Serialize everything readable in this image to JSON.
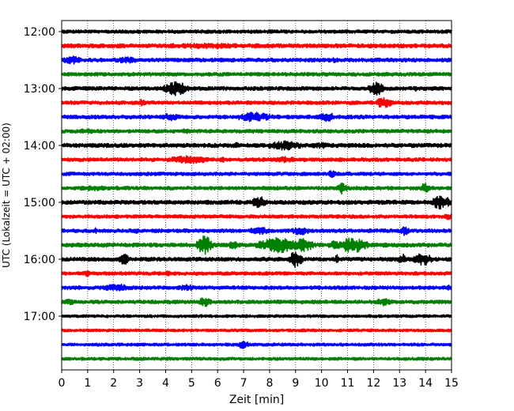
{
  "chart_data": {
    "type": "line",
    "title": "",
    "xlabel": "Zeit  [min]",
    "ylabel": "UTC (Lokalzeit = UTC + 02:00)",
    "xlim": [
      0,
      15
    ],
    "x_ticks": [
      "0",
      "1",
      "2",
      "3",
      "4",
      "5",
      "6",
      "7",
      "8",
      "9",
      "10",
      "11",
      "12",
      "13",
      "14",
      "15"
    ],
    "grid": "vertical dotted",
    "legend": "none",
    "row_interval_minutes": 15,
    "time_labels": [
      "12:00",
      "13:00",
      "14:00",
      "15:00",
      "16:00",
      "17:00"
    ],
    "color_cycle": [
      "#000000",
      "#ff0000",
      "#0000ff",
      "#008000"
    ],
    "traces": [
      {
        "start": "12:00",
        "color": "#000000",
        "amp": 2.2,
        "events": []
      },
      {
        "start": "12:15",
        "color": "#ff0000",
        "amp": 2.6,
        "events": [
          {
            "x": 5.5,
            "w": 3.0,
            "a": 3.5
          }
        ]
      },
      {
        "start": "12:30",
        "color": "#0000ff",
        "amp": 2.4,
        "events": [
          {
            "x": 0.4,
            "w": 0.4,
            "a": 5.5
          },
          {
            "x": 2.5,
            "w": 0.6,
            "a": 4.0
          },
          {
            "x": 10.5,
            "w": 0.1,
            "a": 4.0
          }
        ]
      },
      {
        "start": "12:45",
        "color": "#008000",
        "amp": 2.3,
        "events": []
      },
      {
        "start": "13:00",
        "color": "#000000",
        "amp": 2.4,
        "events": [
          {
            "x": 4.4,
            "w": 0.5,
            "a": 9.0
          },
          {
            "x": 12.1,
            "w": 0.3,
            "a": 9.0
          },
          {
            "x": 13.6,
            "w": 0.1,
            "a": 4.0
          }
        ]
      },
      {
        "start": "13:15",
        "color": "#ff0000",
        "amp": 2.3,
        "events": [
          {
            "x": 3.1,
            "w": 0.1,
            "a": 6.0
          },
          {
            "x": 12.4,
            "w": 0.3,
            "a": 8.0
          }
        ]
      },
      {
        "start": "13:30",
        "color": "#0000ff",
        "amp": 2.4,
        "events": [
          {
            "x": 4.2,
            "w": 0.4,
            "a": 5.0
          },
          {
            "x": 7.4,
            "w": 0.8,
            "a": 6.0
          },
          {
            "x": 10.2,
            "w": 0.3,
            "a": 7.0
          }
        ]
      },
      {
        "start": "13:45",
        "color": "#008000",
        "amp": 2.3,
        "events": [
          {
            "x": 1.0,
            "w": 1.0,
            "a": 3.0
          },
          {
            "x": 4.8,
            "w": 0.2,
            "a": 4.0
          }
        ]
      },
      {
        "start": "14:00",
        "color": "#000000",
        "amp": 2.6,
        "events": [
          {
            "x": 6.7,
            "w": 0.2,
            "a": 4.0
          },
          {
            "x": 8.6,
            "w": 0.8,
            "a": 6.0
          },
          {
            "x": 10.0,
            "w": 0.6,
            "a": 4.0
          }
        ]
      },
      {
        "start": "14:15",
        "color": "#ff0000",
        "amp": 2.3,
        "events": [
          {
            "x": 4.9,
            "w": 1.0,
            "a": 5.0
          },
          {
            "x": 6.2,
            "w": 0.2,
            "a": 3.5
          },
          {
            "x": 8.6,
            "w": 0.5,
            "a": 4.0
          }
        ]
      },
      {
        "start": "14:30",
        "color": "#0000ff",
        "amp": 2.2,
        "events": [
          {
            "x": 10.4,
            "w": 0.2,
            "a": 5.0
          }
        ]
      },
      {
        "start": "14:45",
        "color": "#008000",
        "amp": 2.3,
        "events": [
          {
            "x": 1.2,
            "w": 0.8,
            "a": 3.5
          },
          {
            "x": 10.8,
            "w": 0.2,
            "a": 8.0
          },
          {
            "x": 14.0,
            "w": 0.2,
            "a": 7.0
          }
        ]
      },
      {
        "start": "15:00",
        "color": "#000000",
        "amp": 2.6,
        "events": [
          {
            "x": 7.6,
            "w": 0.3,
            "a": 8.0
          },
          {
            "x": 14.6,
            "w": 0.4,
            "a": 9.0
          }
        ]
      },
      {
        "start": "15:15",
        "color": "#ff0000",
        "amp": 2.2,
        "events": [
          {
            "x": 14.9,
            "w": 0.2,
            "a": 5.0
          }
        ]
      },
      {
        "start": "15:30",
        "color": "#0000ff",
        "amp": 2.3,
        "events": [
          {
            "x": 1.3,
            "w": 0.1,
            "a": 4.0
          },
          {
            "x": 2.9,
            "w": 0.1,
            "a": 5.0
          },
          {
            "x": 7.6,
            "w": 0.5,
            "a": 5.0
          },
          {
            "x": 9.2,
            "w": 0.4,
            "a": 5.5
          },
          {
            "x": 13.2,
            "w": 0.2,
            "a": 6.0
          }
        ]
      },
      {
        "start": "15:45",
        "color": "#008000",
        "amp": 2.6,
        "events": [
          {
            "x": 5.5,
            "w": 0.3,
            "a": 12.0
          },
          {
            "x": 6.6,
            "w": 0.2,
            "a": 6.0
          },
          {
            "x": 8.4,
            "w": 0.9,
            "a": 10.0
          },
          {
            "x": 9.3,
            "w": 0.4,
            "a": 9.0
          },
          {
            "x": 10.5,
            "w": 0.3,
            "a": 6.0
          },
          {
            "x": 11.2,
            "w": 0.6,
            "a": 10.0
          }
        ]
      },
      {
        "start": "16:00",
        "color": "#000000",
        "amp": 2.5,
        "events": [
          {
            "x": 2.4,
            "w": 0.2,
            "a": 8.0
          },
          {
            "x": 9.0,
            "w": 0.3,
            "a": 10.0
          },
          {
            "x": 10.6,
            "w": 0.1,
            "a": 6.0
          },
          {
            "x": 13.1,
            "w": 0.2,
            "a": 7.0
          },
          {
            "x": 13.9,
            "w": 0.4,
            "a": 8.0
          }
        ]
      },
      {
        "start": "16:15",
        "color": "#ff0000",
        "amp": 2.2,
        "events": [
          {
            "x": 1.0,
            "w": 0.2,
            "a": 4.0
          },
          {
            "x": 4.1,
            "w": 0.1,
            "a": 4.0
          }
        ]
      },
      {
        "start": "16:30",
        "color": "#0000ff",
        "amp": 2.3,
        "events": [
          {
            "x": 2.1,
            "w": 0.6,
            "a": 5.0
          },
          {
            "x": 4.8,
            "w": 0.4,
            "a": 4.0
          },
          {
            "x": 14.9,
            "w": 0.1,
            "a": 4.0
          }
        ]
      },
      {
        "start": "16:45",
        "color": "#008000",
        "amp": 2.3,
        "events": [
          {
            "x": 0.3,
            "w": 0.3,
            "a": 4.0
          },
          {
            "x": 5.5,
            "w": 0.3,
            "a": 6.0
          },
          {
            "x": 12.4,
            "w": 0.4,
            "a": 5.0
          }
        ]
      },
      {
        "start": "17:00",
        "color": "#000000",
        "amp": 1.8,
        "events": []
      },
      {
        "start": "17:15",
        "color": "#ff0000",
        "amp": 1.8,
        "events": []
      },
      {
        "start": "17:30",
        "color": "#0000ff",
        "amp": 1.9,
        "events": [
          {
            "x": 7.0,
            "w": 0.2,
            "a": 6.0
          }
        ]
      },
      {
        "start": "17:45",
        "color": "#008000",
        "amp": 1.9,
        "events": []
      }
    ]
  }
}
